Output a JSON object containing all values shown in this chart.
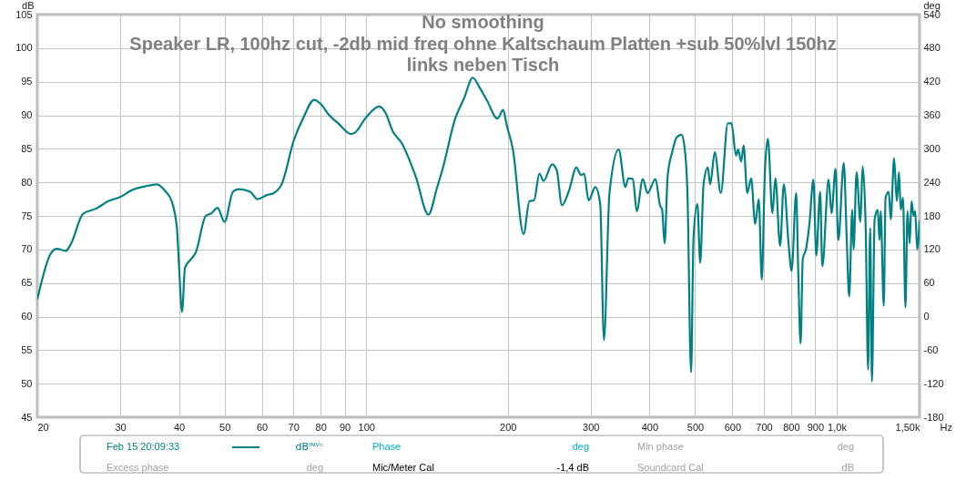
{
  "chart_data": {
    "type": "line",
    "title": "No smoothing",
    "subtitle": "Speaker LR, 100hz cut, -2db mid freq ohne Kaltschaum Platten +sub 50%lvl 150hz\nlinks neben Tisch",
    "xlabel": "Hz",
    "ylabel": "dB",
    "y2label": "deg",
    "log": "x",
    "grid": true,
    "legend": "bottom",
    "xlim": [
      20,
      1500
    ],
    "xticks": [
      20,
      30,
      40,
      50,
      60,
      70,
      80,
      90,
      100,
      200,
      300,
      400,
      500,
      600,
      700,
      800,
      900,
      {
        "value": 1000,
        "label": "1,0k"
      },
      {
        "value": 1500,
        "label": "1,50k"
      }
    ],
    "ylim": [
      45,
      105
    ],
    "yticks": [
      45,
      50,
      55,
      60,
      65,
      70,
      75,
      80,
      85,
      90,
      95,
      100,
      105
    ],
    "y2lim": [
      -180,
      540
    ],
    "y2ticks": [
      -180,
      -120,
      -60,
      0,
      60,
      120,
      180,
      240,
      300,
      360,
      420,
      480,
      540
    ],
    "annotations": [
      "dBᴵᴺⱽᶜ",
      "Phase",
      "deg",
      "Min phase",
      "deg",
      "Excess phase",
      "deg",
      "Mic/Meter Cal",
      "-1,4 dB",
      "Soundcard Cal",
      "dB"
    ],
    "series": [
      {
        "name": "Feb 15 20:09:33",
        "color": "#008080",
        "x": [
          20,
          21.4,
          22.0,
          23.0,
          23.6,
          25.0,
          26.7,
          28.3,
          30.0,
          31.9,
          33.9,
          35.9,
          37.5,
          38.6,
          39.6,
          40.0,
          40.6,
          41.2,
          42.5,
          43.4,
          45.6,
          46.9,
          48.3,
          50.0,
          52.1,
          53.6,
          56.7,
          58.7,
          61.5,
          63.6,
          66.1,
          70.2,
          73.6,
          77.5,
          80.0,
          83.2,
          87.2,
          92.9,
          94.6,
          100,
          106.6,
          109.8,
          113.9,
          119.1,
          127.4,
          135.6,
          141.3,
          145.6,
          154.6,
          161.6,
          168.4,
          174.0,
          180.6,
          190.1,
          195.5,
          198.8,
          205,
          216,
          222.3,
          227.3,
          233.4,
          238.2,
          248.4,
          254.1,
          260.6,
          269.6,
          279.8,
          286.1,
          290.5,
          297,
          306.9,
          314.3,
          320.1,
          328.9,
          344.0,
          355.5,
          360.5,
          368.8,
          375.8,
          387.2,
          396.3,
          412,
          421,
          425.6,
          430.7,
          437.2,
          447,
          457,
          467.7,
          474.5,
          481.6,
          490.3,
          496.2,
          505.7,
          512.7,
          521.2,
          532.2,
          538.5,
          550.5,
          567.1,
          586.9,
          597.4,
          610.9,
          617.3,
          626.5,
          634,
          645.4,
          658,
          670.9,
          682.9,
          693.1,
          703.4,
          714,
          730,
          740.8,
          758,
          772,
          790,
          802,
          820,
          828,
          838,
          847,
          860,
          875,
          892,
          905,
          922,
          932,
          961,
          975,
          994,
          1008,
          1035,
          1051,
          1063,
          1079,
          1086,
          1102,
          1123,
          1135,
          1152,
          1166,
          1178,
          1188,
          1204,
          1222,
          1233,
          1240,
          1259,
          1270,
          1290,
          1303,
          1324,
          1342,
          1356,
          1368,
          1383,
          1400,
          1414,
          1429,
          1442,
          1457,
          1468,
          1483,
          1500
        ],
        "values": [
          62.6,
          69.5,
          70.1,
          69.8,
          70.9,
          75.3,
          76.1,
          77.2,
          77.8,
          78.9,
          79.4,
          79.7,
          78.6,
          77.2,
          73.2,
          67.7,
          60.7,
          67.3,
          68.6,
          69.5,
          75.0,
          75.4,
          76.2,
          74.1,
          78.6,
          79.0,
          78.6,
          77.5,
          78.1,
          78.4,
          79.7,
          86.3,
          89.7,
          92.3,
          91.7,
          90.1,
          88.8,
          87.2,
          87.4,
          89.7,
          91.3,
          90.4,
          87.6,
          85.8,
          80.9,
          75.2,
          79.1,
          82.2,
          89.5,
          92.6,
          95.6,
          94.2,
          92.2,
          89.5,
          90.8,
          88.6,
          84.9,
          72.3,
          77.2,
          77.3,
          81.3,
          80.2,
          82.7,
          81.8,
          76.6,
          78.7,
          82.2,
          81.1,
          81.3,
          77.3,
          79.3,
          76.8,
          56.5,
          78.4,
          84.9,
          79.3,
          80.6,
          80.5,
          75.7,
          80.5,
          78.4,
          80.5,
          76.6,
          75.9,
          70.9,
          80.9,
          84.5,
          86.7,
          87.1,
          85.4,
          78.6,
          51.7,
          71.8,
          76.8,
          68.0,
          79.7,
          82.2,
          79.7,
          84.5,
          78.4,
          88.8,
          88.8,
          84.0,
          84.9,
          83.1,
          85.5,
          78.4,
          80.6,
          73.8,
          77.5,
          65.5,
          81.3,
          86.5,
          75.4,
          80.6,
          70.5,
          79.7,
          70.9,
          66.8,
          78.4,
          67.3,
          56.0,
          68.6,
          70.0,
          73.8,
          80.4,
          69.1,
          78.6,
          67.5,
          80.4,
          75.4,
          82.0,
          71.4,
          82.9,
          70.9,
          63.0,
          75.9,
          70.0,
          81.5,
          74.1,
          82.4,
          73.6,
          52.1,
          73.2,
          50.3,
          74.5,
          75.9,
          71.4,
          75.7,
          61.6,
          77.7,
          78.6,
          74.5,
          83.6,
          77.2,
          81.5,
          75.9,
          77.7,
          61.4,
          75.7,
          70.9,
          77.2,
          75.0,
          75.7,
          70.0,
          74.3
        ]
      }
    ]
  }
}
